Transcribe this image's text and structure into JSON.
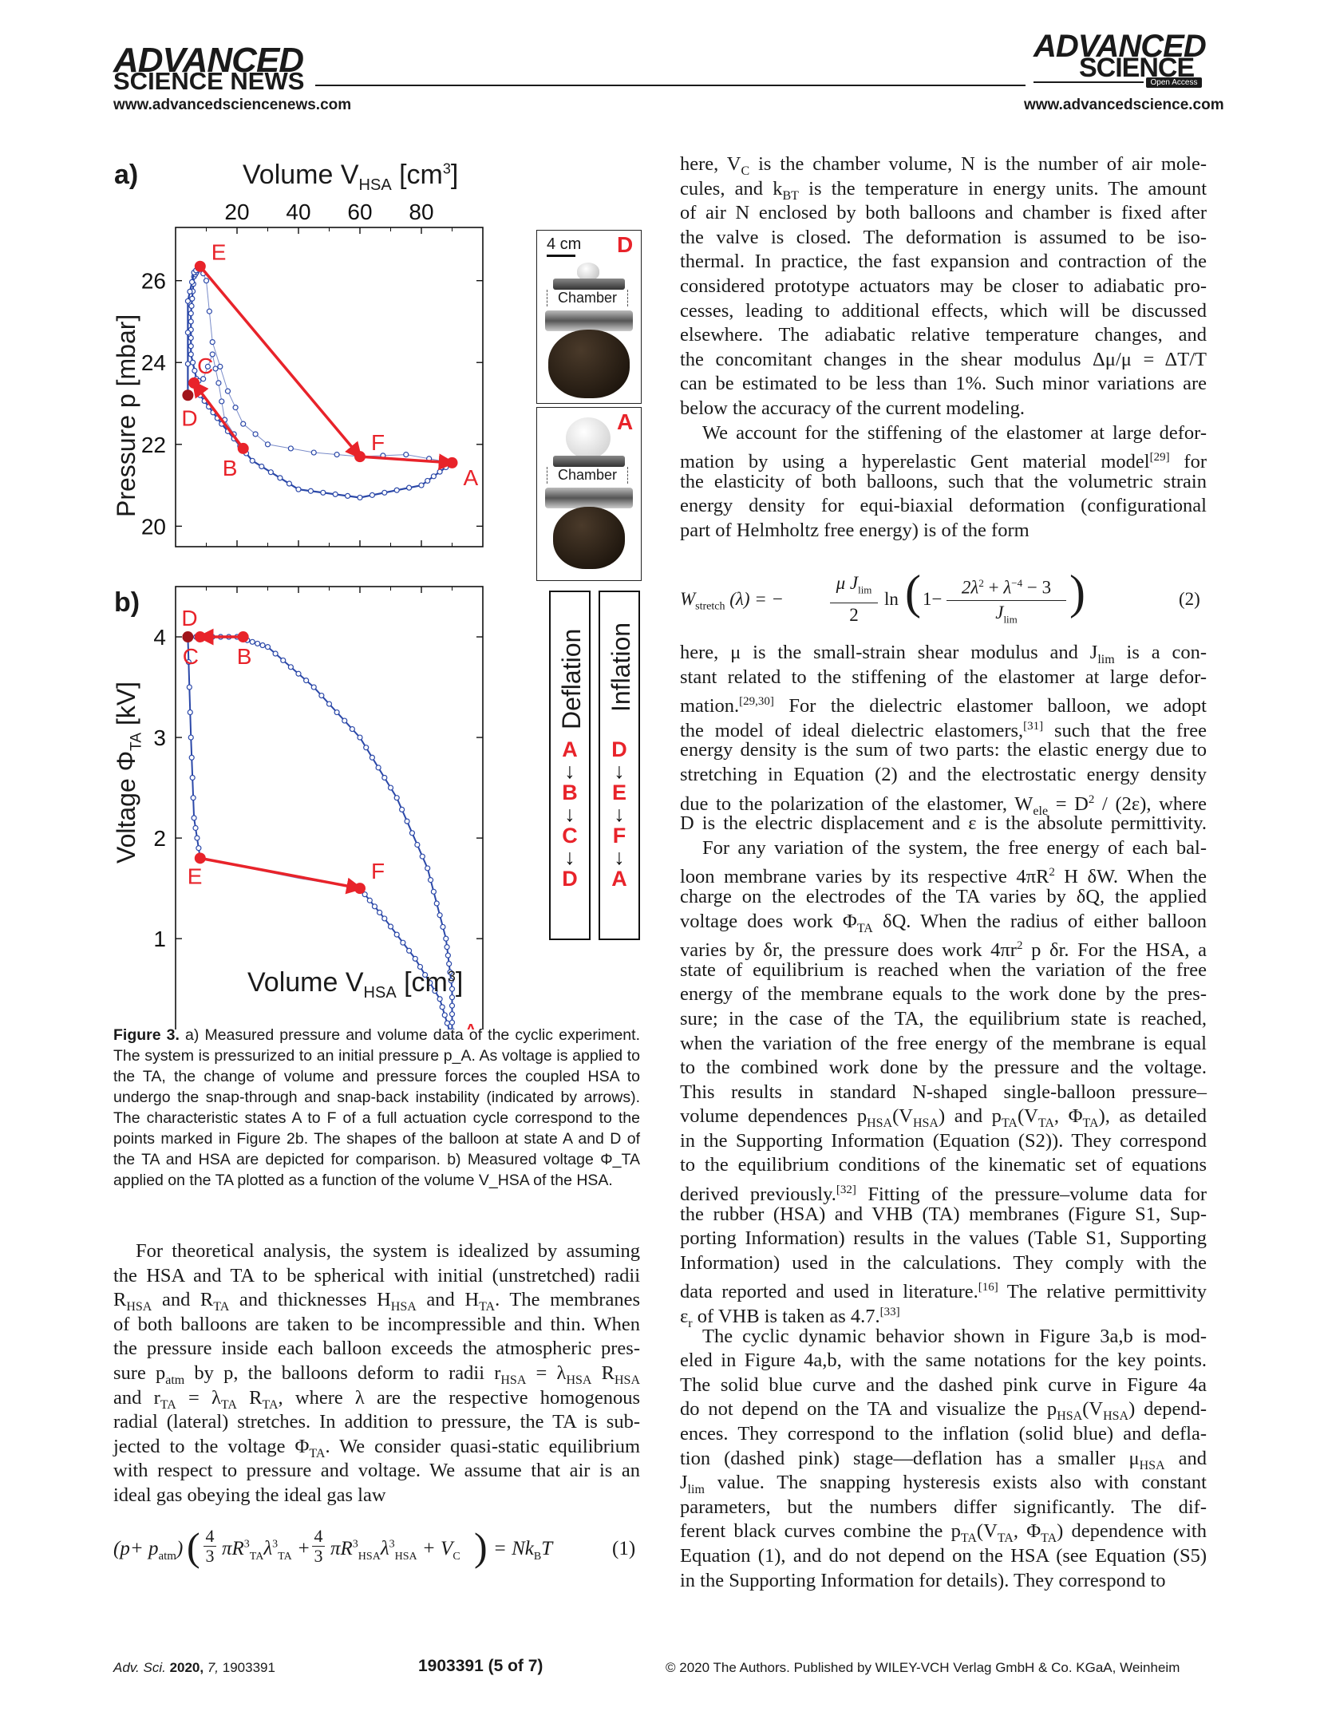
{
  "header": {
    "left_logo_line1": "ADVANCED",
    "left_logo_line2": "SCIENCE NEWS",
    "left_url": "www.advancedsciencenews.com",
    "right_logo_line1": "ADVANCED",
    "right_logo_line2": "SCIENCE",
    "right_badge": "Open Access",
    "right_url": "www.advancedscience.com"
  },
  "figure": {
    "panel_a_label": "a)",
    "panel_b_label": "b)",
    "a_top_axis_label": "Volume V",
    "a_top_axis_sub": "HSA",
    "a_top_axis_unit": "[cm",
    "a_top_axis_sup": "3",
    "a_top_axis_close": "]",
    "a_y_label": "Pressure p [mbar]",
    "b_y_label_prefix": "Voltage Φ",
    "b_y_label_sub": "TA",
    "b_y_label_suffix": " [kV]",
    "b_x_label": "Volume V",
    "b_x_label_sub": "HSA",
    "b_x_label_unit": "[cm",
    "b_x_label_sup": "3",
    "b_x_label_close": "]",
    "photo_scale": "4 cm",
    "photo_d_label": "D",
    "photo_a_label": "A",
    "chamber_label": "Chamber",
    "deflation_title": "Deflation",
    "inflation_title": "Inflation",
    "deflation_seq": [
      "A",
      "B",
      "C",
      "D"
    ],
    "inflation_seq": [
      "D",
      "E",
      "F",
      "A"
    ]
  },
  "chart_data": [
    {
      "type": "line",
      "panel": "a",
      "xlabel": "Volume V_HSA [cm3]",
      "ylabel": "Pressure p [mbar]",
      "xlim": [
        0,
        100
      ],
      "ylim": [
        19.5,
        27.3
      ],
      "xticks": [
        20,
        40,
        60,
        80
      ],
      "yticks": [
        20,
        22,
        24,
        26
      ],
      "points": [
        {
          "label": "A",
          "x": 90,
          "y": 21.55
        },
        {
          "label": "B",
          "x": 22,
          "y": 21.9
        },
        {
          "label": "C",
          "x": 6,
          "y": 23.5
        },
        {
          "label": "D",
          "x": 4,
          "y": 23.2
        },
        {
          "label": "E",
          "x": 8,
          "y": 26.35
        },
        {
          "label": "F",
          "x": 60,
          "y": 21.7
        }
      ]
    },
    {
      "type": "line",
      "panel": "b",
      "xlabel": "Volume V_HSA [cm3]",
      "ylabel": "Voltage Φ_TA [kV]",
      "xlim": [
        0,
        100
      ],
      "ylim": [
        -0.3,
        4.5
      ],
      "xticks": [
        20,
        40,
        60,
        80
      ],
      "yticks": [
        0,
        1,
        2,
        3,
        4
      ],
      "points": [
        {
          "label": "A",
          "x": 90,
          "y": 0.0
        },
        {
          "label": "B",
          "x": 22,
          "y": 4.0
        },
        {
          "label": "C",
          "x": 8,
          "y": 4.0
        },
        {
          "label": "D",
          "x": 4,
          "y": 4.0
        },
        {
          "label": "E",
          "x": 8,
          "y": 1.8
        },
        {
          "label": "F",
          "x": 60,
          "y": 1.5
        }
      ]
    }
  ],
  "caption": {
    "label": "Figure 3.",
    "text": "a) Measured pressure and volume data of the cyclic experiment. The system is pressurized to an initial pressure p_A. As voltage is applied to the TA, the change of volume and pressure forces the coupled HSA to undergo the snap-through and snap-back instability (indicated by arrows). The characteristic states A to F of a full actuation cycle correspond to the points marked in Figure 2b. The shapes of the balloon at state A and D of the TA and HSA are depicted for comparison. b) Measured voltage Φ_TA applied on the TA plotted as a function of the volume V_HSA of the HSA."
  },
  "left_lines": [
    "For theoretical analysis, the system is idealized by assuming",
    "the HSA and TA to be spherical with initial (unstretched) radii",
    "R_HSA and R_TA and thicknesses H_HSA and H_TA. The membranes",
    "of both balloons are taken to be incompressible and thin. When",
    "the pressure inside each balloon exceeds the atmospheric pres-",
    "sure p_atm by p, the balloons deform to radii r_HSA = λ_HSA R_HSA",
    "and r_TA = λ_TA R_TA, where λ are the respective homogenous",
    "radial (lateral) stretches. In addition to pressure, the TA is sub-",
    "jected to the voltage Φ_TA. We consider quasi-static equilibrium",
    "with respect to pressure and voltage. We assume that air is an",
    "ideal gas obeying the ideal gas law"
  ],
  "eq1_number": "(1)",
  "eq2_number": "(2)",
  "right_lines_1": [
    "here, V_C is the chamber volume, N is the number of air mole-",
    "cules, and k_BT is the temperature in energy units. The amount",
    "of air N enclosed by both balloons and chamber is fixed after",
    "the valve is closed. The deformation is assumed to be iso-",
    "thermal. In practice, the fast expansion and contraction of the",
    "considered prototype actuators may be closer to adiabatic pro-",
    "cesses, leading to additional effects, which will be discussed",
    "elsewhere. The adiabatic relative temperature changes, and",
    "the concomitant changes in the shear modulus Δμ/μ = ΔT/T",
    "can be estimated to be less than 1%. Such minor variations are",
    "below the accuracy of the current modeling.",
    "We account for the stiffening of the elastomer at large defor-",
    "mation by using a hyperelastic Gent material model[29] for",
    "the elasticity of both balloons, such that the volumetric strain",
    "energy density for equi-biaxial deformation (configurational",
    "part of Helmholtz free energy) is of the form"
  ],
  "right_lines_2": [
    "here, μ is the small-strain shear modulus and J_lim is a con-",
    "stant related to the stiffening of the elastomer at large defor-",
    "mation.[29,30] For the dielectric elastomer balloon, we adopt",
    "the model of ideal dielectric elastomers,[31] such that the free",
    "energy density is the sum of two parts: the elastic energy due to",
    "stretching in Equation (2) and the electrostatic energy density",
    "due to the polarization of the elastomer, W_ele = D² / (2ε), where",
    "D is the electric displacement and ε is the absolute permittivity.",
    "For any variation of the system, the free energy of each bal-",
    "loon membrane varies by its respective 4πR² H δW. When the",
    "charge on the electrodes of the TA varies by δQ, the applied",
    "voltage does work Φ_TA δQ. When the radius of either balloon",
    "varies by δr, the pressure does work 4πr² p δr. For the HSA, a",
    "state of equilibrium is reached when the variation of the free",
    "energy of the membrane equals to the work done by the pres-",
    "sure; in the case of the TA, the equilibrium state is reached,",
    "when the variation of the free energy of the membrane is equal",
    "to the combined work done by the pressure and the voltage.",
    "This results in standard N-shaped single-balloon pressure–",
    "volume dependences p_HSA(V_HSA) and p_TA(V_TA, Φ_TA), as detailed",
    "in the Supporting Information (Equation (S2)). They correspond",
    "to the equilibrium conditions of the kinematic set of equations",
    "derived previously.[32] Fitting of the pressure–volume data for",
    "the rubber (HSA) and VHB (TA) membranes (Figure S1, Sup-",
    "porting Information) results in the values (Table S1, Supporting",
    "Information) used in the calculations. They comply with the",
    "data reported and used in literature.[16] The relative permittivity",
    "ε_r of VHB is taken as 4.7.[33]",
    "The cyclic dynamic behavior shown in Figure 3a,b is mod-",
    "eled in Figure 4a,b, with the same notations for the key points.",
    "The solid blue curve and the dashed pink curve in Figure 4a",
    "do not depend on the TA and visualize the p_HSA(V_HSA) depend-",
    "ences. They correspond to the inflation (solid blue) and defla-",
    "tion (dashed pink) stage—deflation has a smaller μ_HSA and",
    "J_lim value. The snapping hysteresis exists also with constant",
    "parameters, but the numbers differ significantly. The dif-",
    "ferent black curves combine the p_TA(V_TA, Φ_TA) dependence with",
    "Equation (1), and do not depend on the HSA (see Equation (S5)",
    "in the Supporting Information for details). They correspond to"
  ],
  "footer": {
    "journal": "Adv. Sci.",
    "year": "2020,",
    "volume": "7,",
    "article": "1903391",
    "page": "1903391  (5 of 7)",
    "copyright": "© 2020 The Authors. Published by WILEY-VCH Verlag GmbH & Co. KGaA, Weinheim"
  }
}
